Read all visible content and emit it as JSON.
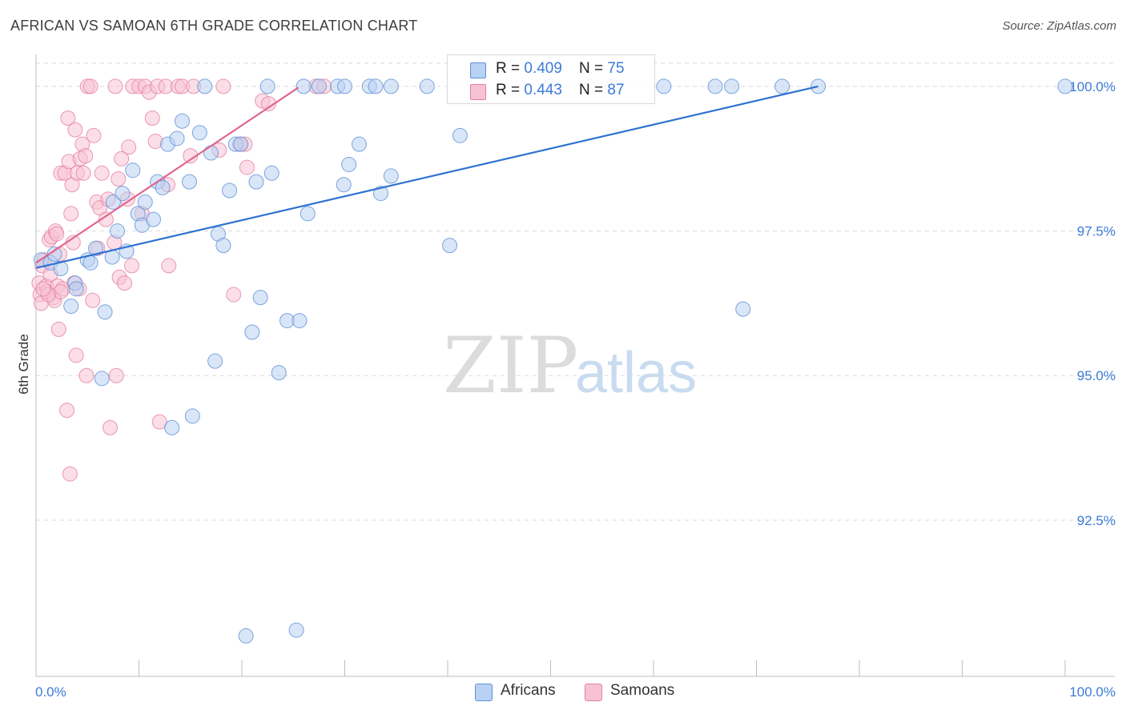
{
  "title": "AFRICAN VS SAMOAN 6TH GRADE CORRELATION CHART",
  "source": "Source: ZipAtlas.com",
  "watermark": {
    "zip": "ZIP",
    "atlas": "atlas"
  },
  "colors": {
    "blue_fill": "#b9d2f3",
    "blue_stroke": "#5f8fd6",
    "blue_line": "#2f72d0",
    "pink_fill": "#f7c3d3",
    "pink_stroke": "#e57fa0",
    "pink_line": "#e06690",
    "tick_text": "#3d7bd8",
    "grid": "#d9d9d9"
  },
  "legend": {
    "rows": [
      {
        "r_label": "R = ",
        "r_value": "0.409",
        "n_label": "N = ",
        "n_value": "75"
      },
      {
        "r_label": "R = ",
        "r_value": "0.443",
        "n_label": "N = ",
        "n_value": "87"
      }
    ],
    "series_names": [
      "Africans",
      "Samoans"
    ]
  },
  "chart_data": {
    "type": "scatter",
    "title": "AFRICAN VS SAMOAN 6TH GRADE CORRELATION CHART",
    "xlabel": "",
    "ylabel": "6th Grade",
    "xlim": [
      0,
      100
    ],
    "ylim": [
      89.8,
      100.4
    ],
    "x_tick_labels": [
      "0.0%",
      "100.0%"
    ],
    "y_ticks": [
      100.0,
      97.5,
      95.0,
      92.5
    ],
    "y_tick_labels": [
      "100.0%",
      "97.5%",
      "95.0%",
      "92.5%"
    ],
    "series": [
      {
        "name": "Africans",
        "R": 0.409,
        "N": 75,
        "trend": {
          "x": [
            0,
            76
          ],
          "y": [
            96.86,
            100.0
          ]
        },
        "points": [
          [
            0.5,
            97.0
          ],
          [
            1.4,
            96.95
          ],
          [
            1.8,
            97.1
          ],
          [
            2.4,
            96.85
          ],
          [
            3.8,
            96.6
          ],
          [
            3.4,
            96.2
          ],
          [
            3.9,
            96.5
          ],
          [
            5.0,
            97.0
          ],
          [
            5.3,
            96.95
          ],
          [
            5.8,
            97.2
          ],
          [
            6.4,
            94.95
          ],
          [
            6.7,
            96.1
          ],
          [
            7.4,
            97.05
          ],
          [
            7.5,
            98.0
          ],
          [
            7.9,
            97.5
          ],
          [
            8.4,
            98.15
          ],
          [
            8.8,
            97.15
          ],
          [
            9.4,
            98.55
          ],
          [
            9.9,
            97.8
          ],
          [
            10.3,
            97.6
          ],
          [
            10.6,
            98.0
          ],
          [
            11.4,
            97.7
          ],
          [
            11.8,
            98.35
          ],
          [
            12.3,
            98.25
          ],
          [
            12.8,
            99.0
          ],
          [
            13.2,
            94.1
          ],
          [
            13.7,
            99.1
          ],
          [
            14.2,
            99.4
          ],
          [
            14.9,
            98.35
          ],
          [
            15.2,
            94.3
          ],
          [
            15.9,
            99.2
          ],
          [
            16.4,
            100.0
          ],
          [
            17.0,
            98.85
          ],
          [
            17.4,
            95.25
          ],
          [
            17.7,
            97.45
          ],
          [
            18.2,
            97.25
          ],
          [
            18.8,
            98.2
          ],
          [
            19.4,
            99.0
          ],
          [
            19.9,
            99.0
          ],
          [
            20.4,
            90.5
          ],
          [
            21.0,
            95.75
          ],
          [
            21.4,
            98.35
          ],
          [
            21.8,
            96.35
          ],
          [
            22.5,
            100.0
          ],
          [
            22.9,
            98.5
          ],
          [
            23.6,
            95.05
          ],
          [
            24.4,
            95.95
          ],
          [
            25.3,
            90.6
          ],
          [
            25.6,
            95.95
          ],
          [
            26.0,
            100.0
          ],
          [
            26.4,
            97.8
          ],
          [
            27.5,
            100.0
          ],
          [
            29.3,
            100.0
          ],
          [
            30.0,
            100.0
          ],
          [
            29.9,
            98.3
          ],
          [
            30.4,
            98.65
          ],
          [
            31.4,
            99.0
          ],
          [
            32.4,
            100.0
          ],
          [
            33.0,
            100.0
          ],
          [
            33.5,
            98.15
          ],
          [
            34.5,
            98.45
          ],
          [
            34.5,
            100.0
          ],
          [
            38.0,
            100.0
          ],
          [
            40.2,
            97.25
          ],
          [
            41.2,
            99.15
          ],
          [
            50.0,
            100.0
          ],
          [
            54.0,
            100.0
          ],
          [
            56.0,
            100.0
          ],
          [
            61.0,
            100.0
          ],
          [
            66.0,
            100.0
          ],
          [
            67.6,
            100.0
          ],
          [
            68.7,
            96.15
          ],
          [
            72.5,
            100.0
          ],
          [
            76.0,
            100.0
          ],
          [
            100.0,
            100.0
          ]
        ]
      },
      {
        "name": "Samoans",
        "R": 0.443,
        "N": 87,
        "trend": {
          "x": [
            0,
            25.5
          ],
          "y": [
            96.95,
            99.98
          ]
        },
        "points": [
          [
            0.3,
            96.6
          ],
          [
            0.4,
            96.4
          ],
          [
            0.5,
            96.25
          ],
          [
            0.6,
            96.9
          ],
          [
            0.8,
            97.0
          ],
          [
            1.0,
            96.55
          ],
          [
            1.1,
            96.45
          ],
          [
            1.3,
            97.35
          ],
          [
            1.4,
            96.75
          ],
          [
            1.5,
            97.4
          ],
          [
            1.7,
            96.35
          ],
          [
            1.8,
            96.3
          ],
          [
            1.9,
            97.5
          ],
          [
            2.0,
            97.45
          ],
          [
            2.1,
            96.55
          ],
          [
            2.2,
            95.8
          ],
          [
            2.3,
            97.1
          ],
          [
            2.4,
            98.5
          ],
          [
            2.6,
            96.5
          ],
          [
            2.8,
            98.5
          ],
          [
            3.0,
            94.4
          ],
          [
            3.1,
            99.45
          ],
          [
            3.2,
            98.7
          ],
          [
            3.3,
            93.3
          ],
          [
            3.4,
            97.8
          ],
          [
            3.5,
            98.3
          ],
          [
            3.6,
            97.3
          ],
          [
            3.7,
            96.6
          ],
          [
            3.8,
            99.25
          ],
          [
            3.9,
            95.35
          ],
          [
            4.0,
            98.5
          ],
          [
            4.2,
            96.5
          ],
          [
            4.3,
            98.75
          ],
          [
            4.5,
            99.0
          ],
          [
            4.6,
            98.5
          ],
          [
            4.8,
            98.8
          ],
          [
            4.9,
            95.0
          ],
          [
            5.0,
            100.0
          ],
          [
            5.3,
            100.0
          ],
          [
            5.6,
            99.15
          ],
          [
            5.9,
            98.0
          ],
          [
            6.0,
            97.2
          ],
          [
            6.2,
            97.9
          ],
          [
            6.4,
            98.5
          ],
          [
            6.8,
            97.7
          ],
          [
            7.0,
            98.05
          ],
          [
            7.2,
            94.1
          ],
          [
            7.6,
            97.3
          ],
          [
            7.7,
            100.0
          ],
          [
            8.0,
            98.4
          ],
          [
            7.8,
            95.0
          ],
          [
            8.1,
            96.7
          ],
          [
            8.3,
            98.75
          ],
          [
            8.6,
            96.6
          ],
          [
            8.9,
            98.05
          ],
          [
            9.0,
            98.95
          ],
          [
            9.3,
            96.9
          ],
          [
            9.4,
            100.0
          ],
          [
            10.0,
            100.0
          ],
          [
            10.3,
            97.8
          ],
          [
            10.6,
            100.0
          ],
          [
            11.0,
            99.9
          ],
          [
            11.3,
            99.45
          ],
          [
            11.6,
            99.05
          ],
          [
            11.8,
            100.0
          ],
          [
            12.0,
            94.2
          ],
          [
            12.6,
            100.0
          ],
          [
            12.8,
            98.3
          ],
          [
            12.9,
            96.9
          ],
          [
            13.8,
            100.0
          ],
          [
            14.2,
            100.0
          ],
          [
            15.0,
            98.8
          ],
          [
            15.3,
            100.0
          ],
          [
            17.8,
            98.9
          ],
          [
            18.2,
            100.0
          ],
          [
            19.2,
            96.4
          ],
          [
            19.8,
            99.0
          ],
          [
            20.3,
            99.0
          ],
          [
            20.5,
            98.6
          ],
          [
            22.0,
            99.75
          ],
          [
            22.6,
            99.7
          ],
          [
            27.2,
            100.0
          ],
          [
            28.0,
            100.0
          ],
          [
            5.5,
            96.3
          ],
          [
            2.4,
            96.45
          ],
          [
            1.2,
            96.4
          ],
          [
            0.7,
            96.5
          ]
        ]
      }
    ]
  }
}
